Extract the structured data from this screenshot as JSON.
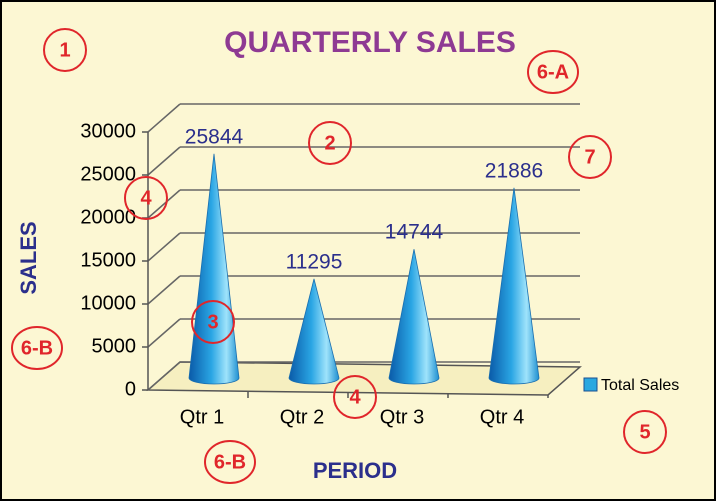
{
  "chart_data": {
    "type": "cone",
    "title": "QUARTERLY SALES",
    "xlabel": "PERIOD",
    "ylabel": "SALES",
    "categories": [
      "Qtr 1",
      "Qtr 2",
      "Qtr 3",
      "Qtr 4"
    ],
    "series": [
      {
        "name": "Total Sales",
        "color": "#29a8e0",
        "values": [
          25844,
          11295,
          14744,
          21886
        ]
      }
    ],
    "ylim": [
      0,
      30000
    ],
    "yticks": [
      0,
      5000,
      10000,
      15000,
      20000,
      25000,
      30000
    ],
    "grid": true,
    "legend": "right",
    "annotations": [
      "1",
      "6-A",
      "2",
      "7",
      "4",
      "3",
      "6-B",
      "4",
      "5",
      "6-B"
    ]
  }
}
